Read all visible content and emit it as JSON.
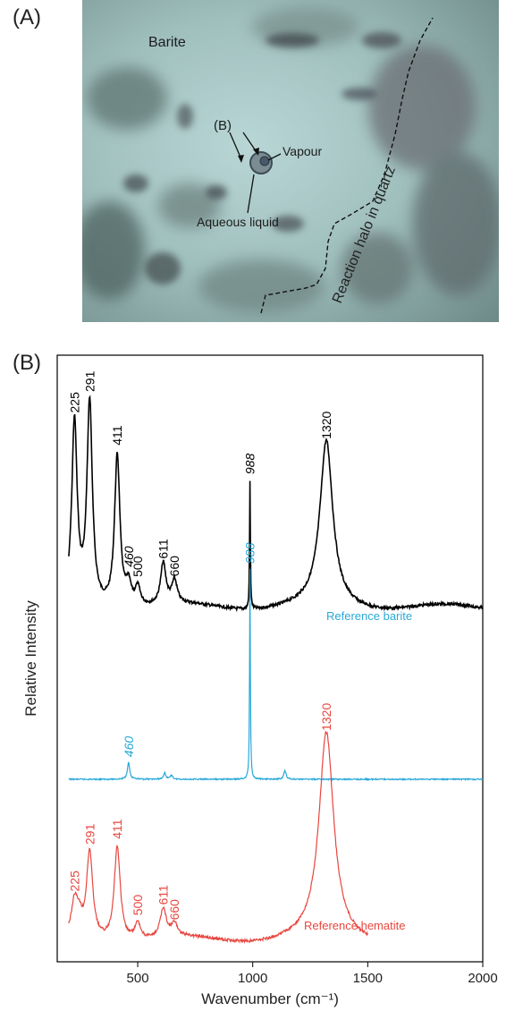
{
  "panel_a": {
    "label": "(A)",
    "annotations": {
      "barite": "Barite",
      "b_marker": "(B)",
      "vapour": "Vapour",
      "aqueous_liquid": "Aqueous liquid",
      "reaction_halo": "Reaction halo in quartz"
    }
  },
  "panel_b": {
    "label": "(B)"
  },
  "chart_data": {
    "type": "line",
    "xlabel": "Wavenumber (cm⁻¹)",
    "ylabel": "Relative Intensity",
    "xlim": [
      150,
      2000
    ],
    "xticks": [
      "500",
      "1000",
      "1500",
      "2000"
    ],
    "xtick_values": [
      500,
      1000,
      1500,
      2000
    ],
    "grid": false,
    "series": [
      {
        "name": "",
        "color": "#000000",
        "x_range": [
          200,
          2000
        ],
        "peaks": [
          [
            225,
            0.88
          ],
          [
            291,
            0.98
          ],
          [
            411,
            0.74
          ],
          [
            460,
            0.1
          ],
          [
            500,
            0.09
          ],
          [
            611,
            0.2
          ],
          [
            660,
            0.11
          ],
          [
            988,
            0.62
          ],
          [
            1320,
            0.8
          ]
        ],
        "peak_labels": [
          {
            "text": "225",
            "x": 225
          },
          {
            "text": "291",
            "x": 291
          },
          {
            "text": "411",
            "x": 411
          },
          {
            "text": "460",
            "x": 460
          },
          {
            "text": "500",
            "x": 500
          },
          {
            "text": "611",
            "x": 611
          },
          {
            "text": "660",
            "x": 660
          },
          {
            "text": "988",
            "x": 988
          },
          {
            "text": "1320",
            "x": 1320
          }
        ]
      },
      {
        "name": "Reference barite",
        "color": "#29a8d8",
        "x_range": [
          200,
          2000
        ],
        "peaks": [
          [
            460,
            0.08
          ],
          [
            617,
            0.03
          ],
          [
            647,
            0.02
          ],
          [
            988,
            1.0
          ],
          [
            1140,
            0.04
          ]
        ],
        "peak_labels": [
          {
            "text": "460",
            "x": 460
          },
          {
            "text": "988",
            "x": 988
          }
        ]
      },
      {
        "name": "Reference hematite",
        "color": "#e8463f",
        "x_range": [
          200,
          1500
        ],
        "peaks": [
          [
            225,
            0.16
          ],
          [
            245,
            0.08
          ],
          [
            291,
            0.42
          ],
          [
            411,
            0.46
          ],
          [
            500,
            0.08
          ],
          [
            611,
            0.14
          ],
          [
            660,
            0.06
          ],
          [
            1320,
            1.0
          ]
        ],
        "peak_labels": [
          {
            "text": "225",
            "x": 225
          },
          {
            "text": "291",
            "x": 291
          },
          {
            "text": "411",
            "x": 411
          },
          {
            "text": "500",
            "x": 500
          },
          {
            "text": "611",
            "x": 611
          },
          {
            "text": "660",
            "x": 660
          },
          {
            "text": "1320",
            "x": 1320
          }
        ]
      }
    ]
  }
}
